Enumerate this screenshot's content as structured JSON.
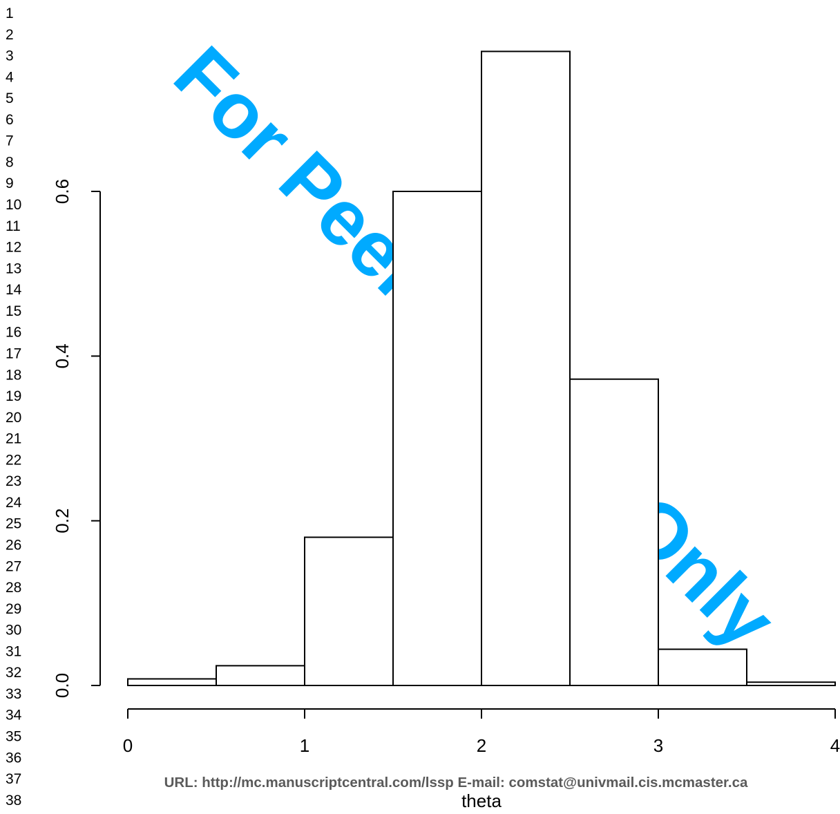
{
  "line_numbers": [
    "1",
    "2",
    "3",
    "4",
    "5",
    "6",
    "7",
    "8",
    "9",
    "10",
    "11",
    "12",
    "13",
    "14",
    "15",
    "16",
    "17",
    "18",
    "19",
    "20",
    "21",
    "22",
    "23",
    "24",
    "25",
    "26",
    "27",
    "28",
    "29",
    "30",
    "31",
    "32",
    "33",
    "34",
    "35",
    "36",
    "37",
    "38"
  ],
  "watermark": {
    "text": "For Peer Review Only",
    "color": "#00aaff"
  },
  "footer": {
    "text": "URL: http://mc.manuscriptcentral.com/lssp E-mail:  comstat@univmail.cis.mcmaster.ca"
  },
  "chart_data": {
    "type": "bar",
    "title": "",
    "xlabel": "theta",
    "ylabel": "",
    "bins": [
      [
        0,
        0.5
      ],
      [
        0.5,
        1
      ],
      [
        1,
        1.5
      ],
      [
        1.5,
        2
      ],
      [
        2,
        2.5
      ],
      [
        2.5,
        3
      ],
      [
        3,
        3.5
      ],
      [
        3.5,
        4
      ]
    ],
    "values": [
      0.008,
      0.024,
      0.18,
      0.6,
      0.77,
      0.372,
      0.044,
      0.004
    ],
    "xlim": [
      0,
      4
    ],
    "ylim": [
      0,
      0.6
    ],
    "xticks": [
      0,
      1,
      2,
      3,
      4
    ],
    "xtick_labels": [
      "0",
      "1",
      "2",
      "3",
      "4"
    ],
    "yticks": [
      0,
      0.2,
      0.4,
      0.6
    ],
    "ytick_labels": [
      "0.0",
      "0.2",
      "0.4",
      "0.6"
    ],
    "grid": false,
    "bar_fill": "#ffffff",
    "bar_stroke": "#000000"
  }
}
